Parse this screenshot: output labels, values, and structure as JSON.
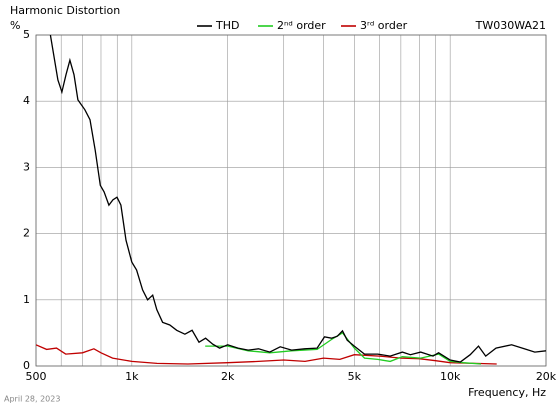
{
  "chart_data": {
    "type": "line",
    "title": "Harmonic Distortion",
    "y_label": "%",
    "x_label": "Frequency, Hz",
    "model": "TW030WA21",
    "date": "April 28, 2023",
    "xlog": true,
    "grid": true,
    "xlim": [
      500,
      20000
    ],
    "ylim": [
      0,
      5
    ],
    "xticks": [
      {
        "value": 500,
        "label": "500"
      },
      {
        "value": 1000,
        "label": "1k"
      },
      {
        "value": 2000,
        "label": "2k"
      },
      {
        "value": 5000,
        "label": "5k"
      },
      {
        "value": 10000,
        "label": "10k"
      },
      {
        "value": 20000,
        "label": "20k"
      }
    ],
    "xminor_ticks": [
      600,
      700,
      800,
      900,
      3000,
      4000,
      6000,
      7000,
      8000,
      9000
    ],
    "yticks": [
      0,
      1,
      2,
      3,
      4,
      5
    ],
    "series": [
      {
        "name": "THD",
        "color": "#000000",
        "x": [
          555,
          586,
          603,
          621,
          639,
          658,
          677,
          712,
          739,
          767,
          796,
          818,
          847,
          872,
          898,
          924,
          959,
          1000,
          1035,
          1081,
          1121,
          1163,
          1198,
          1249,
          1316,
          1383,
          1468,
          1546,
          1626,
          1705,
          1796,
          1887,
          2000,
          2155,
          2320,
          2500,
          2713,
          2925,
          3175,
          3490,
          3820,
          4030,
          4240,
          4420,
          4590,
          4750,
          5000,
          5380,
          5920,
          6480,
          7080,
          7500,
          8080,
          8830,
          9200,
          10000,
          10760,
          11560,
          12270,
          12930,
          13930,
          15600,
          17100,
          18450,
          20000
        ],
        "values": [
          5.0,
          4.32,
          4.14,
          4.4,
          4.62,
          4.4,
          4.02,
          3.87,
          3.72,
          3.26,
          2.73,
          2.63,
          2.43,
          2.51,
          2.55,
          2.43,
          1.9,
          1.57,
          1.45,
          1.15,
          1.0,
          1.07,
          0.85,
          0.66,
          0.62,
          0.54,
          0.48,
          0.54,
          0.36,
          0.42,
          0.33,
          0.27,
          0.32,
          0.27,
          0.24,
          0.26,
          0.21,
          0.29,
          0.24,
          0.26,
          0.27,
          0.44,
          0.42,
          0.45,
          0.53,
          0.39,
          0.3,
          0.18,
          0.18,
          0.15,
          0.21,
          0.17,
          0.21,
          0.15,
          0.2,
          0.09,
          0.06,
          0.17,
          0.3,
          0.15,
          0.27,
          0.32,
          0.26,
          0.21,
          0.23
        ]
      },
      {
        "name": "2ⁿᵈ order",
        "color": "#22cc22",
        "x": [
          1700,
          2000,
          2320,
          2713,
          3175,
          3820,
          4240,
          4590,
          5000,
          5380,
          5920,
          6480,
          7080,
          8080,
          9200,
          10000,
          11000,
          12500
        ],
        "values": [
          0.3,
          0.3,
          0.23,
          0.2,
          0.23,
          0.25,
          0.4,
          0.5,
          0.27,
          0.12,
          0.1,
          0.07,
          0.14,
          0.12,
          0.18,
          0.07,
          0.05,
          0.03
        ]
      },
      {
        "name": "3ʳᵈ order",
        "color": "#c00000",
        "x": [
          500,
          540,
          580,
          620,
          700,
          760,
          800,
          870,
          1000,
          1200,
          1500,
          2000,
          2500,
          3000,
          3500,
          4000,
          4500,
          5000,
          6000,
          7000,
          8000,
          9000,
          10000,
          12000,
          14000
        ],
        "values": [
          0.32,
          0.25,
          0.27,
          0.18,
          0.2,
          0.26,
          0.2,
          0.12,
          0.07,
          0.04,
          0.03,
          0.05,
          0.07,
          0.09,
          0.07,
          0.12,
          0.1,
          0.17,
          0.15,
          0.12,
          0.11,
          0.08,
          0.05,
          0.04,
          0.03
        ]
      }
    ]
  }
}
